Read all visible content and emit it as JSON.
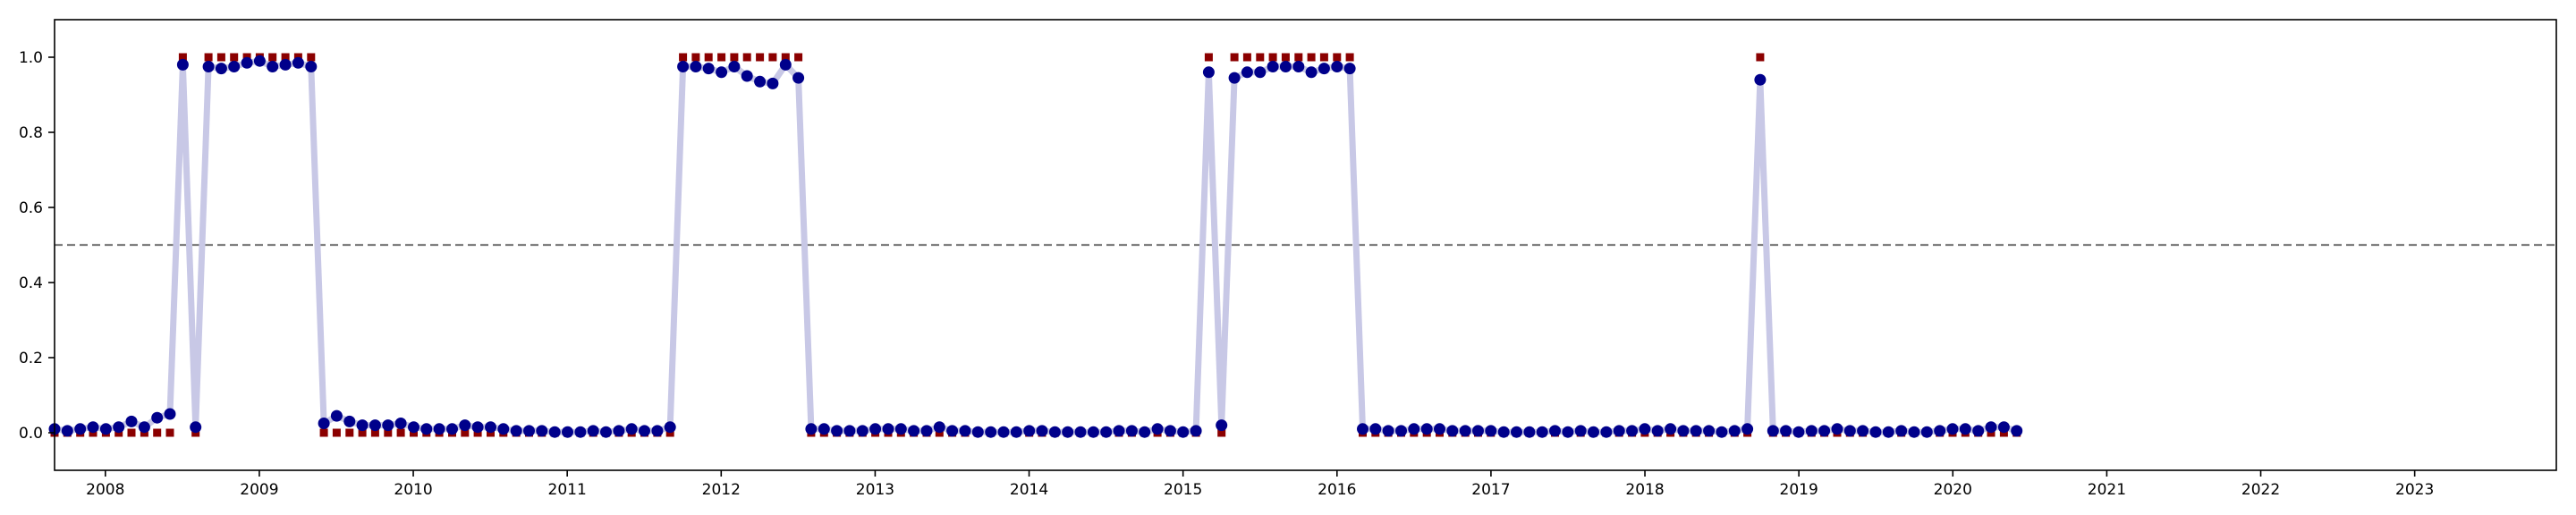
{
  "chart_data": {
    "type": "scatter",
    "title": "",
    "xlabel": "",
    "ylabel": "",
    "xlim": [
      2007.67,
      2023.92
    ],
    "ylim": [
      -0.1,
      1.1
    ],
    "grid": false,
    "legend": "none",
    "threshold": 0.5,
    "x_ticks": [
      "2008",
      "2009",
      "2010",
      "2011",
      "2012",
      "2013",
      "2014",
      "2015",
      "2016",
      "2017",
      "2018",
      "2019",
      "2020",
      "2021",
      "2022",
      "2023"
    ],
    "y_ticks": [
      "0.0",
      "0.2",
      "0.4",
      "0.6",
      "0.8",
      "1.0"
    ],
    "colors": {
      "probability_line": "#c8c8e6",
      "probability_points": "#00008b",
      "labels": "#8b0000",
      "threshold": "#808080"
    },
    "x_start": 2007.67,
    "x_step": 0.0833,
    "series": [
      {
        "marker": "circle",
        "values": [
          0.01,
          0.005,
          0.01,
          0.015,
          0.01,
          0.015,
          0.03,
          0.015,
          0.04,
          0.05,
          0.98,
          0.015,
          0.975,
          0.97,
          0.975,
          0.985,
          0.99,
          0.975,
          0.98,
          0.985,
          0.975,
          0.025,
          0.045,
          0.03,
          0.02,
          0.02,
          0.02,
          0.025,
          0.015,
          0.01,
          0.01,
          0.01,
          0.02,
          0.015,
          0.015,
          0.01,
          0.005,
          0.005,
          0.005,
          0.002,
          0.002,
          0.002,
          0.005,
          0.002,
          0.005,
          0.01,
          0.005,
          0.005,
          0.015,
          0.975,
          0.975,
          0.97,
          0.96,
          0.975,
          0.95,
          0.935,
          0.93,
          0.98,
          0.945,
          0.01,
          0.01,
          0.005,
          0.005,
          0.005,
          0.01,
          0.01,
          0.01,
          0.005,
          0.005,
          0.015,
          0.005,
          0.005,
          0.002,
          0.002,
          0.002,
          0.002,
          0.005,
          0.005,
          0.002,
          0.002,
          0.002,
          0.002,
          0.002,
          0.005,
          0.005,
          0.002,
          0.01,
          0.005,
          0.002,
          0.005,
          0.96,
          0.02,
          0.945,
          0.96,
          0.96,
          0.975,
          0.975,
          0.975,
          0.96,
          0.97,
          0.975,
          0.97,
          0.01,
          0.01,
          0.005,
          0.005,
          0.01,
          0.01,
          0.01,
          0.005,
          0.005,
          0.005,
          0.005,
          0.002,
          0.002,
          0.002,
          0.002,
          0.005,
          0.002,
          0.005,
          0.002,
          0.002,
          0.005,
          0.005,
          0.01,
          0.005,
          0.01,
          0.005,
          0.005,
          0.005,
          0.002,
          0.005,
          0.01,
          0.94,
          0.005,
          0.005,
          0.002,
          0.005,
          0.005,
          0.01,
          0.005,
          0.005,
          0.002,
          0.002,
          0.005,
          0.002,
          0.002,
          0.005,
          0.01,
          0.01,
          0.005,
          0.015,
          0.015,
          0.005
        ]
      },
      {
        "marker": "square",
        "values": [
          0,
          0,
          0,
          0,
          0,
          0,
          0,
          0,
          0,
          0,
          1,
          0,
          1,
          1,
          1,
          1,
          1,
          1,
          1,
          1,
          1,
          0,
          0,
          0,
          0,
          0,
          0,
          0,
          0,
          0,
          0,
          0,
          0,
          0,
          0,
          0,
          0,
          0,
          0,
          0,
          0,
          0,
          0,
          0,
          0,
          0,
          0,
          0,
          0,
          1,
          1,
          1,
          1,
          1,
          1,
          1,
          1,
          1,
          1,
          0,
          0,
          0,
          0,
          0,
          0,
          0,
          0,
          0,
          0,
          0,
          0,
          0,
          0,
          0,
          0,
          0,
          0,
          0,
          0,
          0,
          0,
          0,
          0,
          0,
          0,
          0,
          0,
          0,
          0,
          0,
          1,
          0,
          1,
          1,
          1,
          1,
          1,
          1,
          1,
          1,
          1,
          1,
          0,
          0,
          0,
          0,
          0,
          0,
          0,
          0,
          0,
          0,
          0,
          0,
          0,
          0,
          0,
          0,
          0,
          0,
          0,
          0,
          0,
          0,
          0,
          0,
          0,
          0,
          0,
          0,
          0,
          0,
          0,
          1,
          0,
          0,
          0,
          0,
          0,
          0,
          0,
          0,
          0,
          0,
          0,
          0,
          0,
          0,
          0,
          0,
          0,
          0,
          0,
          0
        ]
      }
    ]
  }
}
